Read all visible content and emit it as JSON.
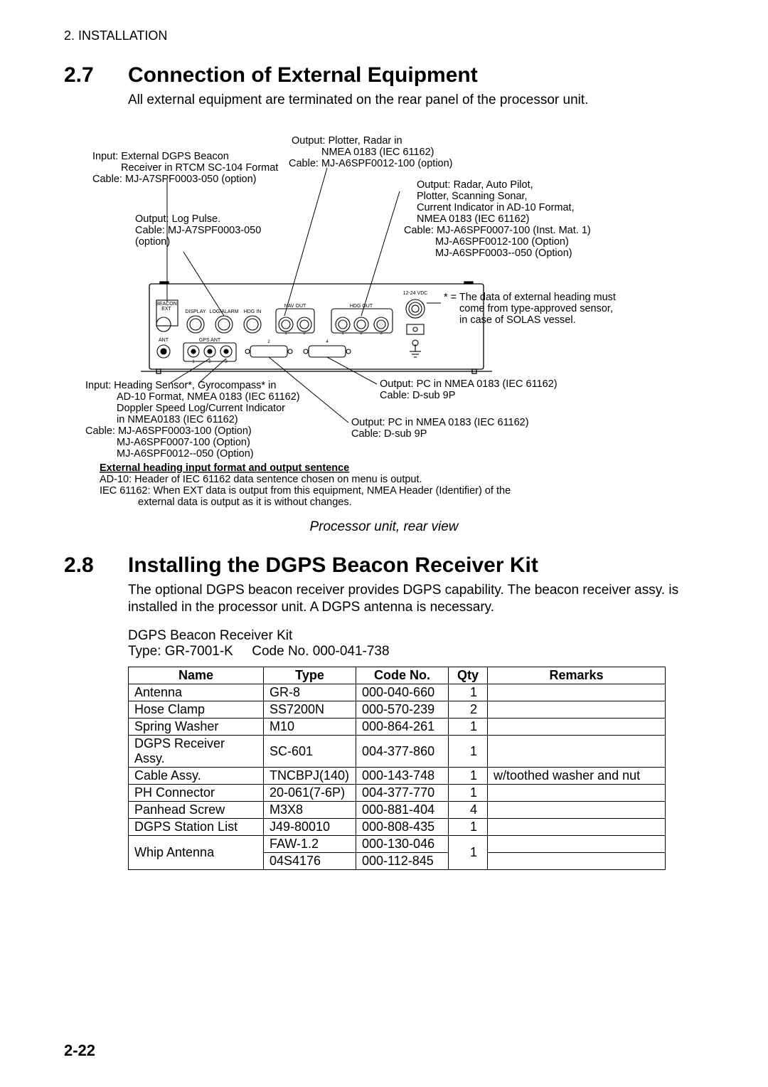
{
  "chapter_header": "2. INSTALLATION",
  "s27": {
    "num": "2.7",
    "title": "Connection of External Equipment",
    "body": "All external equipment are terminated on the rear panel of the processor unit."
  },
  "diagram": {
    "labels": {
      "topL1": "Input: External DGPS Beacon",
      "topL2": "Receiver in RTCM SC-104 Format",
      "topL3": "Cable: MJ-A7SPF0003-050 (option)",
      "log1": "Output: Log Pulse.",
      "log2": "Cable: MJ-A7SPF0003-050",
      "log3": "(option)",
      "plot1": "Output: Plotter, Radar in",
      "plot2": "NMEA 0183 (IEC 61162)",
      "plot3": "Cable: MJ-A6SPF0012-100 (option)",
      "radar1": "Output: Radar, Auto Pilot,",
      "radar2": "Plotter, Scanning Sonar,",
      "radar3": "Current Indicator in AD-10 Format,",
      "radar4": "NMEA 0183 (IEC 61162)",
      "radar5": "Cable: MJ-A6SPF0007-100 (Inst. Mat. 1)",
      "radar6": "MJ-A6SPF0012-100 (Option)",
      "radar7": "MJ-A6SPF0003--050 (Option)",
      "note1": "* = The data of external heading must",
      "note2": "come from type-approved sensor,",
      "note3": "in case of SOLAS vessel.",
      "hdg1": "Input: Heading Sensor*, Gyrocompass* in",
      "hdg2": "AD-10 Format, NMEA 0183 (IEC 61162)",
      "hdg3": "Doppler Speed Log/Current Indicator",
      "hdg4": "in NMEA0183 (IEC 61162)",
      "hdg5": "Cable: MJ-A6SPF0003-100 (Option)",
      "hdg6": "MJ-A6SPF0007-100 (Option)",
      "hdg7": "MJ-A6SPF0012--050 (Option)",
      "pc1a": "Output: PC in NMEA 0183 (IEC 61162)",
      "pc1b": "Cable: D-sub 9P",
      "pc2a": "Output: PC in NMEA 0183 (IEC 61162)",
      "pc2b": "Cable: D-sub 9P",
      "ext_head": "External heading input format and output sentence",
      "ext1": "AD-10: Header of IEC 61162 data sentence chosen on menu is output.",
      "ext2": "IEC 61162: When EXT data is output from this equipment, NMEA Header (Identifier) of the",
      "ext3": "external data is output as it is without changes."
    },
    "panel": {
      "vdc": "12-24 VDC",
      "beacon": "BEACON",
      "ext": "EXT",
      "display": "DISPLAY",
      "logalarm": "LOG/ALARM",
      "hdgin": "HDG IN",
      "navout": "NAV OUT",
      "hdgout": "HDG OUT",
      "ant": "ANT",
      "gpsant": "GPS ANT"
    },
    "caption": "Processor unit, rear view"
  },
  "s28": {
    "num": "2.8",
    "title": "Installing the DGPS Beacon Receiver Kit",
    "body": "The optional DGPS beacon receiver provides DGPS capability. The beacon receiver assy. is installed in the processor unit. A DGPS antenna is necessary.",
    "kit_line1": "DGPS Beacon Receiver Kit",
    "kit_line2a": "Type: GR-7001-K",
    "kit_line2b": "Code No. 000-041-738"
  },
  "table": {
    "headers": {
      "name": "Name",
      "type": "Type",
      "code": "Code No.",
      "qty": "Qty",
      "remarks": "Remarks"
    },
    "col_widths": {
      "name": 190,
      "type": 130,
      "code": 130,
      "qty": 55,
      "remarks": 250
    },
    "rows": [
      {
        "name": "Antenna",
        "type": "GR-8",
        "code": "000-040-660",
        "qty": "1",
        "remarks": ""
      },
      {
        "name": "Hose Clamp",
        "type": "SS7200N",
        "code": "000-570-239",
        "qty": "2",
        "remarks": ""
      },
      {
        "name": "Spring Washer",
        "type": "M10",
        "code": "000-864-261",
        "qty": "1",
        "remarks": ""
      },
      {
        "name": "DGPS Receiver Assy.",
        "type": "SC-601",
        "code": "004-377-860",
        "qty": "1",
        "remarks": ""
      },
      {
        "name": "Cable Assy.",
        "type": "TNCBPJ(140)",
        "code": "000-143-748",
        "qty": "1",
        "remarks": "w/toothed washer and nut"
      },
      {
        "name": "PH Connector",
        "type": "20-061(7-6P)",
        "code": "004-377-770",
        "qty": "1",
        "remarks": ""
      },
      {
        "name": "Panhead Screw",
        "type": "M3X8",
        "code": "000-881-404",
        "qty": "4",
        "remarks": ""
      },
      {
        "name": "DGPS Station List",
        "type": "J49-80010",
        "code": "000-808-435",
        "qty": "1",
        "remarks": ""
      }
    ],
    "whip": {
      "name": "Whip Antenna",
      "r1": {
        "type": "FAW-1.2",
        "code": "000-130-046"
      },
      "r2": {
        "type": "04S4176",
        "code": "000-112-845"
      },
      "qty": "1",
      "remarks1": "",
      "remarks2": ""
    }
  },
  "page_num": "2-22",
  "colors": {
    "line": "#000000",
    "bg": "#ffffff"
  }
}
